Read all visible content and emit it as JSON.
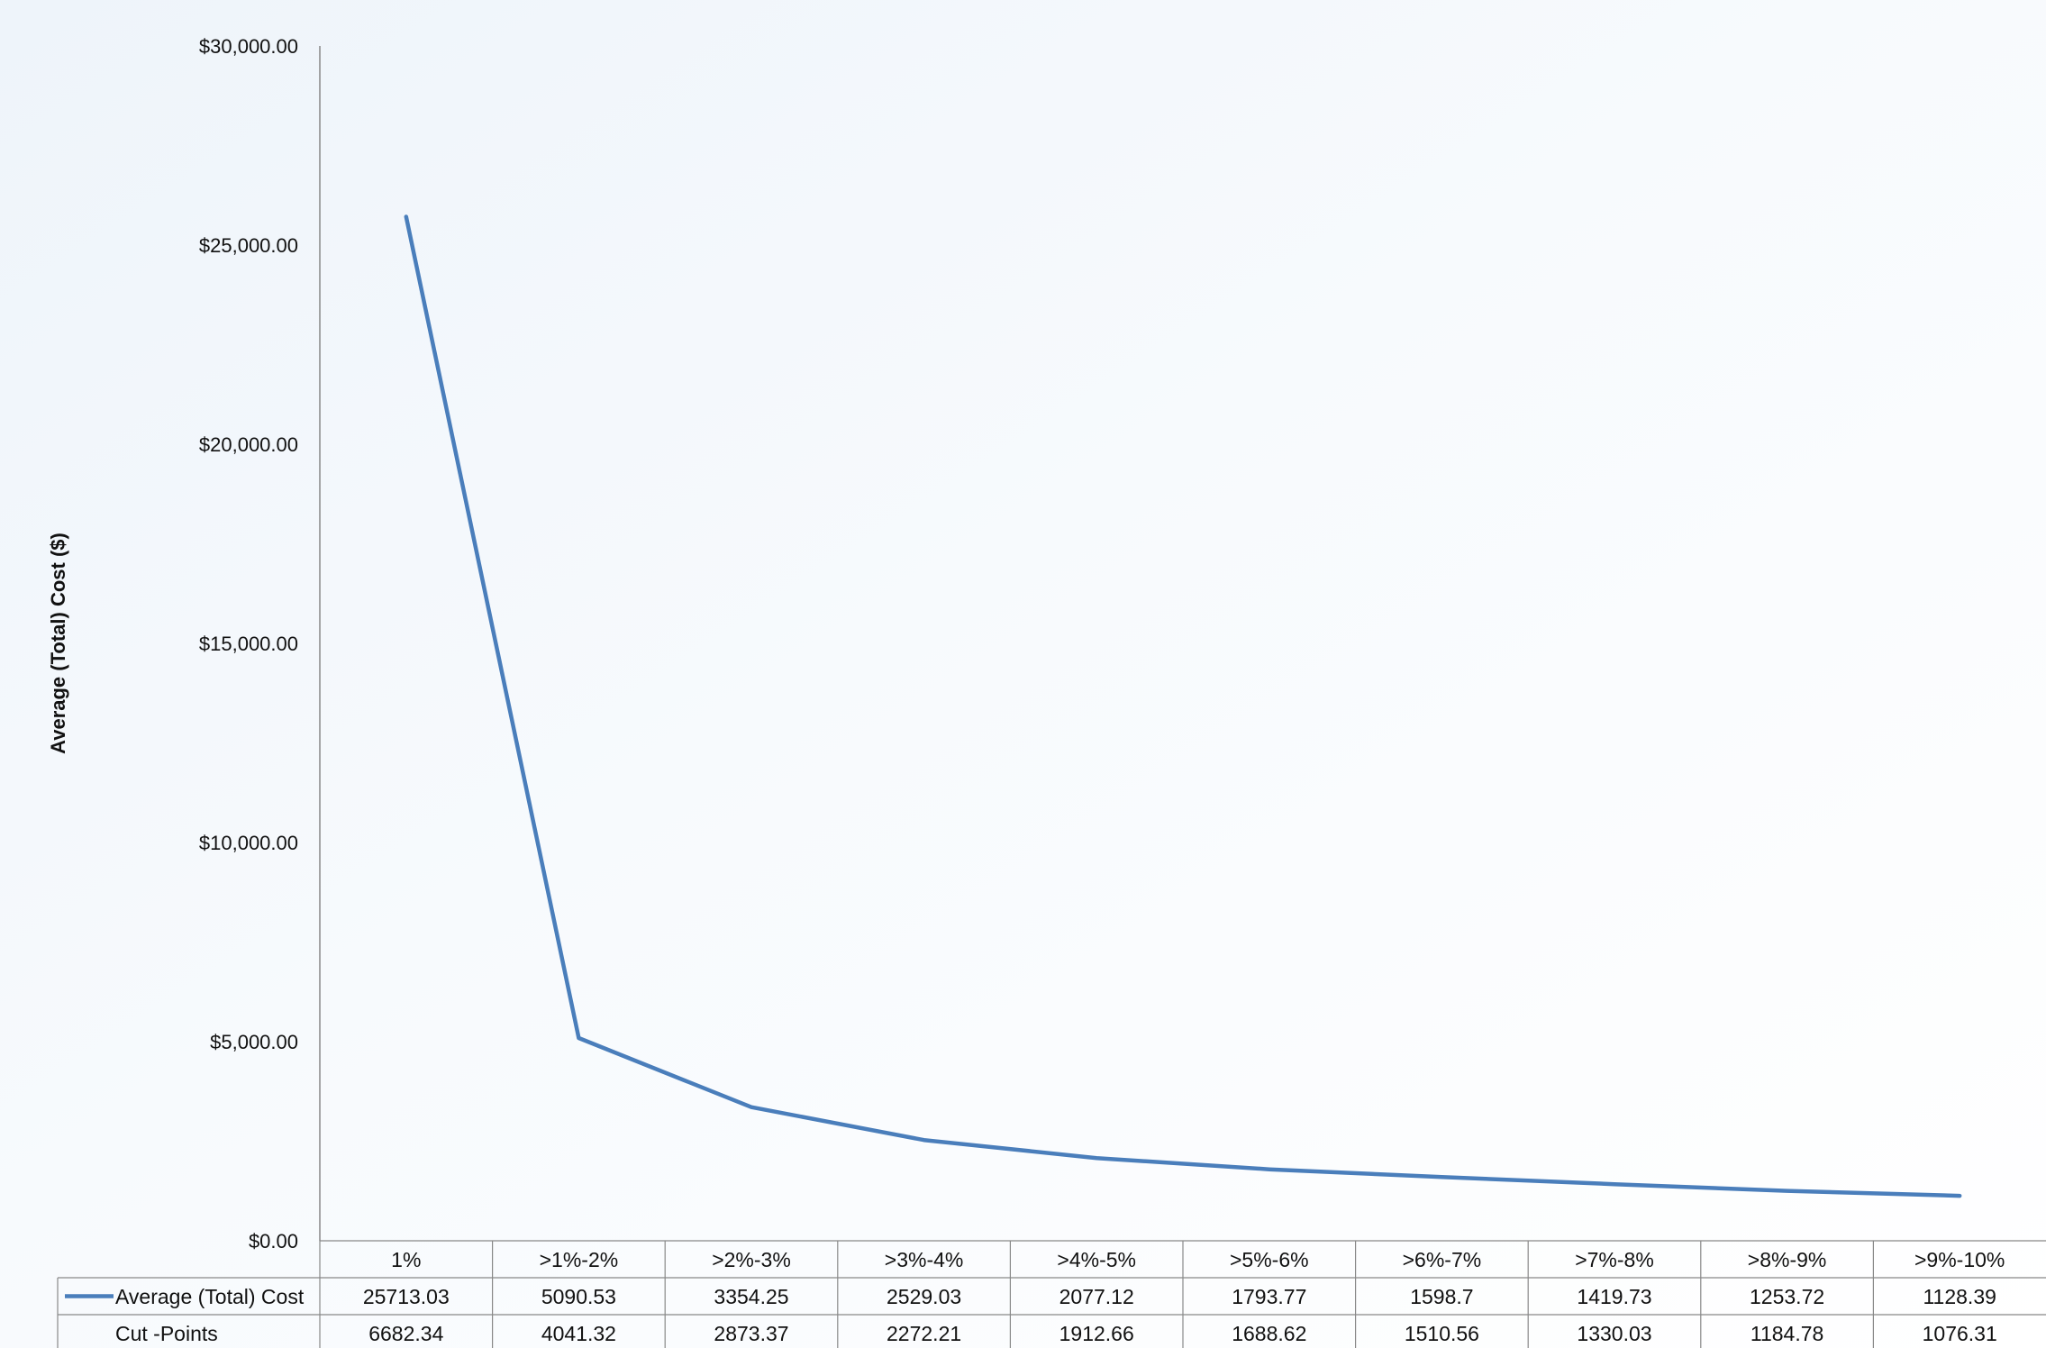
{
  "chart_data": {
    "type": "line",
    "ylabel": "Average (Total) Cost ($)",
    "ylim": [
      0,
      30000
    ],
    "yticks": [
      "$0.00",
      "$5,000.00",
      "$10,000.00",
      "$15,000.00",
      "$20,000.00",
      "$25,000.00",
      "$30,000.00"
    ],
    "yticks_values": [
      0,
      5000,
      10000,
      15000,
      20000,
      25000,
      30000
    ],
    "categories": [
      ">1%",
      ">1%-2%",
      ">2%-3%",
      ">3%-4%",
      ">4%-5%",
      ">5%-6%",
      ">6%-7%",
      ">7%-8%",
      ">8%-9%",
      ">9%-10%"
    ],
    "categories_display": [
      "1%",
      ">1%-2%",
      ">2%-3%",
      ">3%-4%",
      ">4%-5%",
      ">5%-6%",
      ">6%-7%",
      ">7%-8%",
      ">8%-9%",
      ">9%-10%"
    ],
    "series": [
      {
        "name": "Average (Total) Cost",
        "color": "#4a7ebb",
        "values": [
          25713.03,
          5090.53,
          3354.25,
          2529.03,
          2077.12,
          1793.77,
          1598.7,
          1419.73,
          1253.72,
          1128.39
        ],
        "labels": [
          "25713.03",
          "5090.53",
          "3354.25",
          "2529.03",
          "2077.12",
          "1793.77",
          "1598.7",
          "1419.73",
          "1253.72",
          "1128.39"
        ]
      }
    ],
    "table_rows": [
      {
        "name": "Cut -Points",
        "values": [
          "6682.34",
          "4041.32",
          "2873.37",
          "2272.21",
          "1912.66",
          "1688.62",
          "1510.56",
          "1330.03",
          "1184.78",
          "1076.31"
        ]
      }
    ],
    "legend": "data-table",
    "grid": false
  }
}
